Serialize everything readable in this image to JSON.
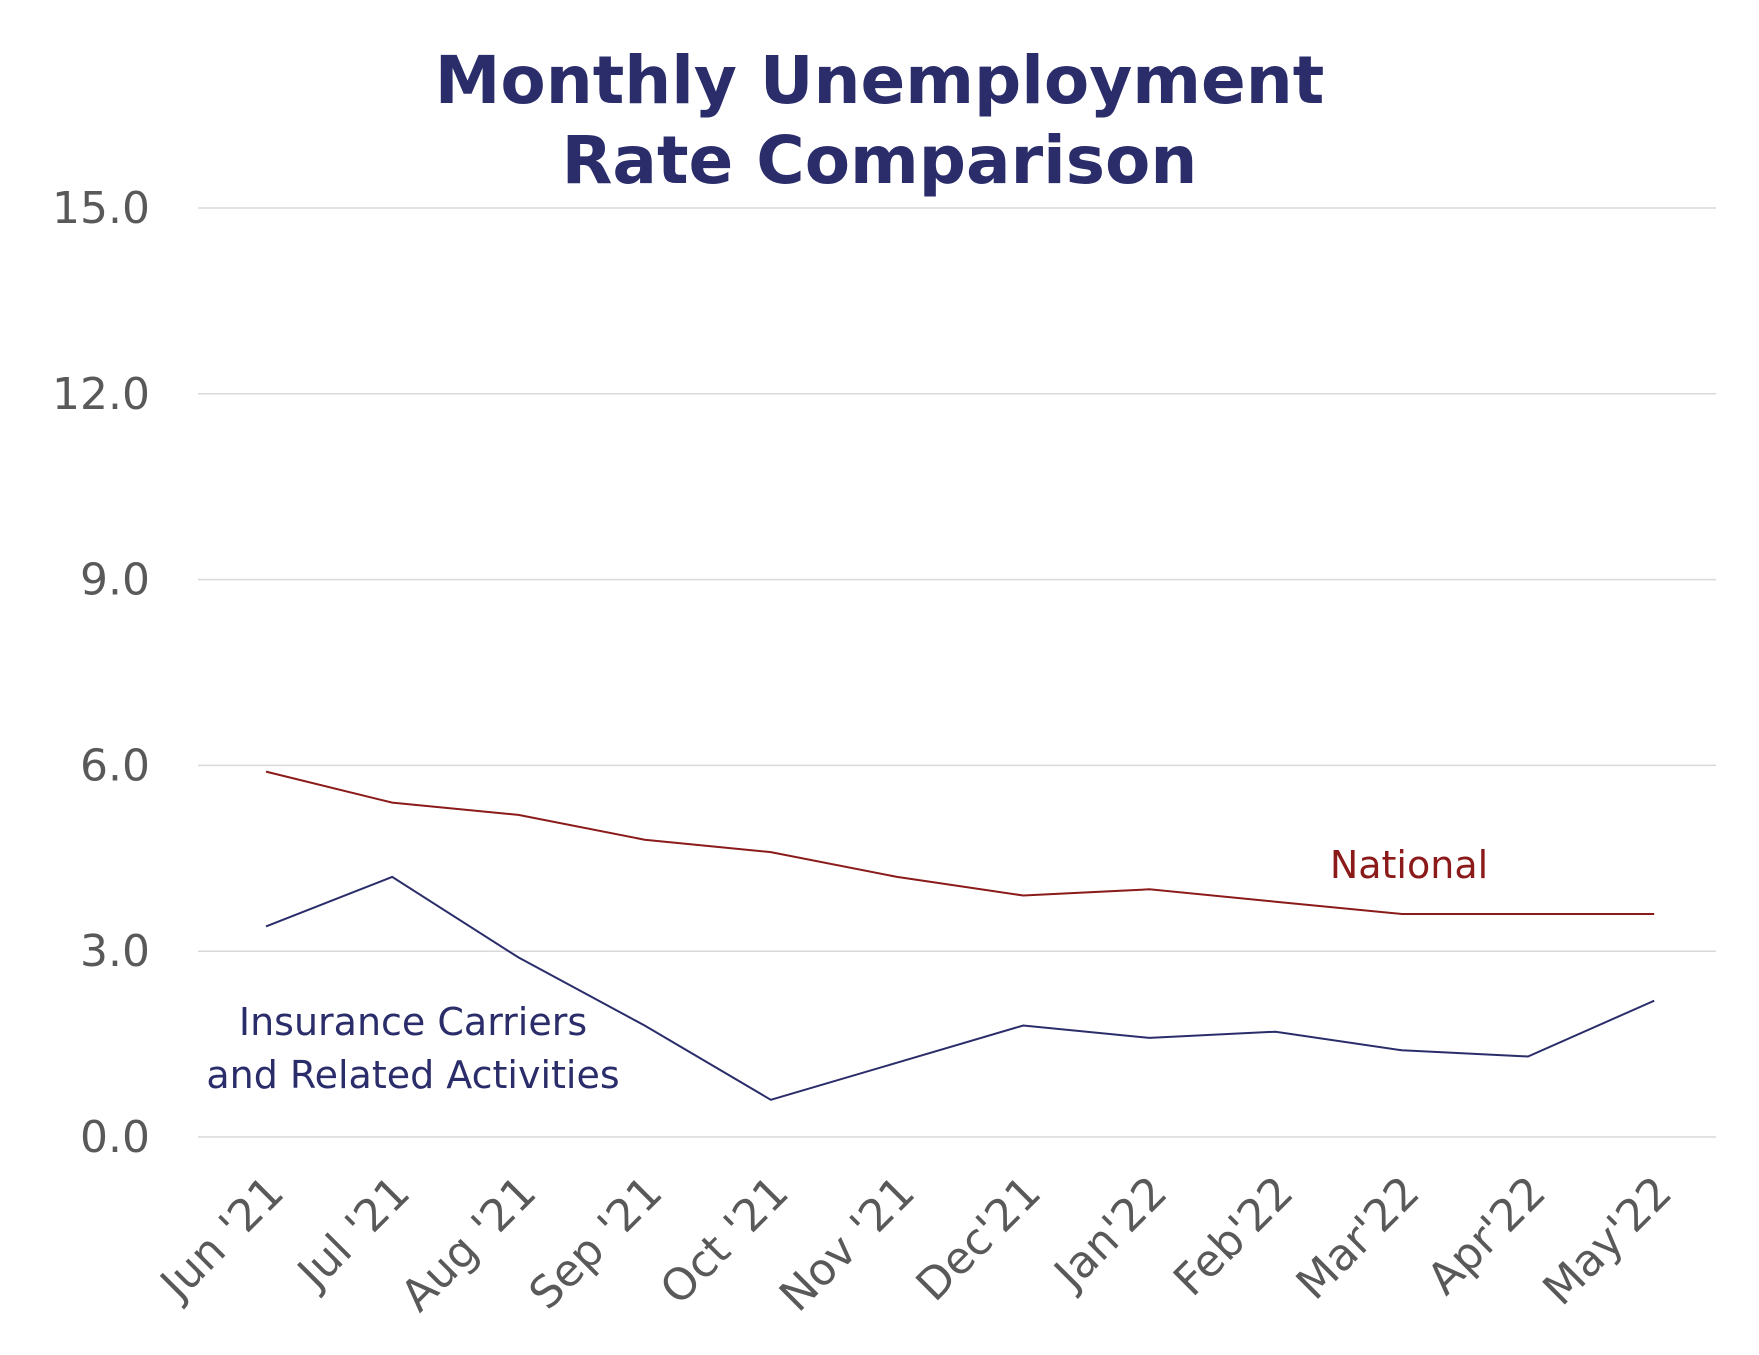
{
  "title_lines": [
    "Monthly Unemployment",
    "Rate Comparison"
  ],
  "colors": {
    "title": "#2b2d6b",
    "tick_text": "#595959",
    "grid": "#d9d9d9",
    "national": "#8b1a1a",
    "insurance": "#2b2d6b"
  },
  "chart_data": {
    "type": "line",
    "title": "Monthly Unemployment Rate Comparison",
    "xlabel": "",
    "ylabel": "",
    "ylim": [
      0,
      15
    ],
    "yticks": [
      "0.0",
      "3.0",
      "6.0",
      "9.0",
      "12.0",
      "15.0"
    ],
    "ytick_values": [
      0,
      3,
      6,
      9,
      12,
      15
    ],
    "categories": [
      "Jun '21",
      "Jul '21",
      "Aug '21",
      "Sep '21",
      "Oct '21",
      "Nov '21",
      "Dec'21",
      "Jan'22",
      "Feb'22",
      "Mar'22",
      "Apr'22",
      "May'22"
    ],
    "grid": "horizontal",
    "legend": "inline labels",
    "series": [
      {
        "name": "National",
        "label_lines": [
          "National"
        ],
        "color": "#8b1a1a",
        "values": [
          5.9,
          5.4,
          5.2,
          4.8,
          4.6,
          4.2,
          3.9,
          4.0,
          3.8,
          3.6,
          3.6,
          3.6
        ]
      },
      {
        "name": "Insurance Carriers and Related Activities",
        "label_lines": [
          "Insurance Carriers",
          "and Related Activities"
        ],
        "color": "#2b2d6b",
        "values": [
          3.4,
          4.2,
          2.9,
          1.8,
          0.6,
          1.2,
          1.8,
          1.6,
          1.7,
          1.4,
          1.3,
          2.2
        ]
      }
    ]
  }
}
